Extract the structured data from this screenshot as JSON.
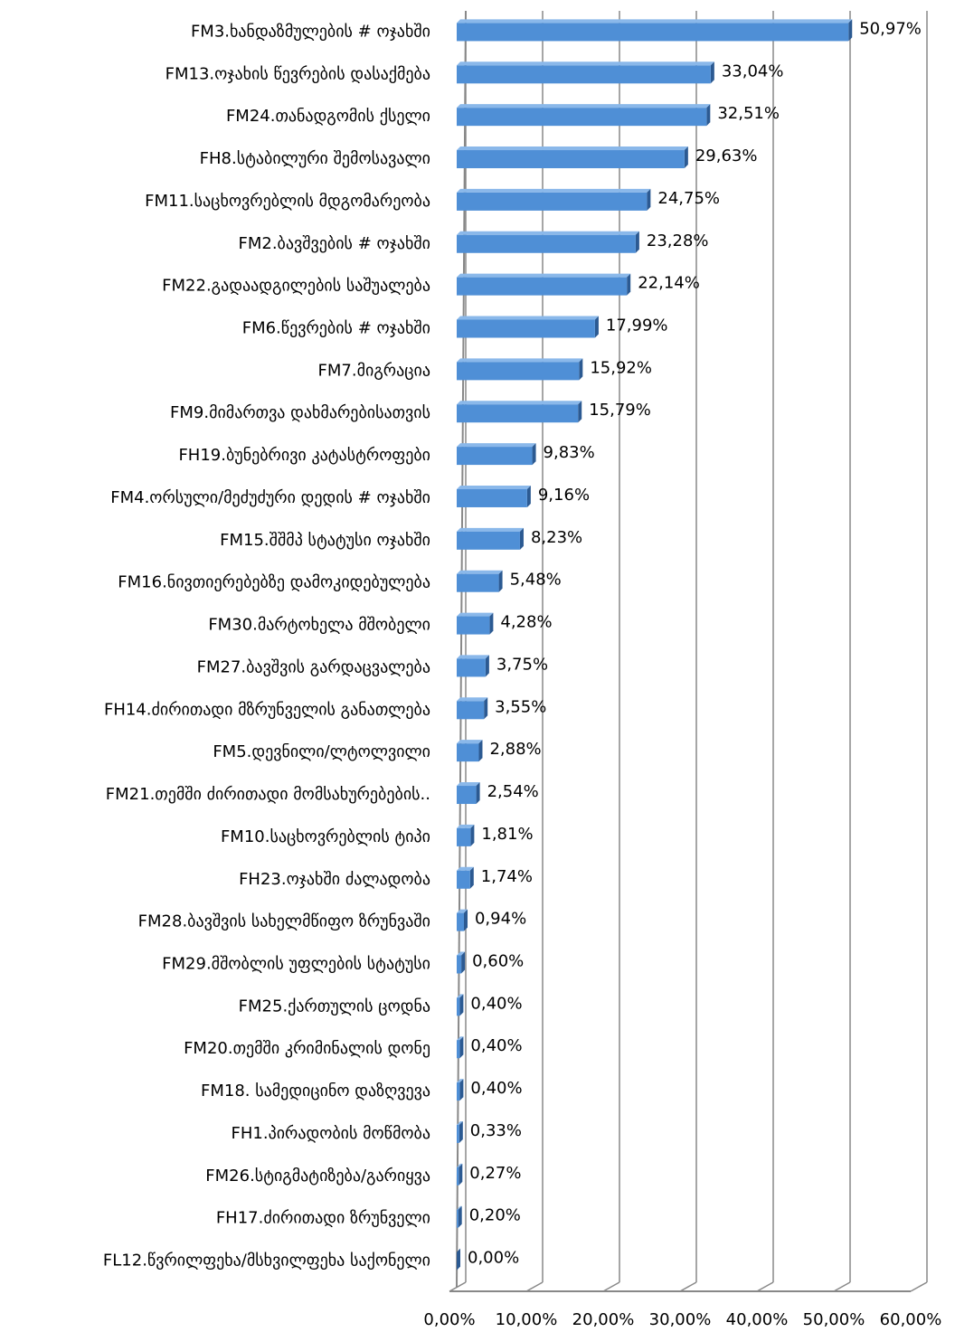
{
  "chart_data": {
    "type": "bar",
    "orientation": "horizontal",
    "categories": [
      "FM3.ხანდაზმულების # ოჯახში",
      "FM13.ოჯახის წევრების დასაქმება",
      "FM24.თანადგომის ქსელი",
      "FH8.სტაბილური შემოსავალი",
      "FM11.საცხოვრებლის მდგომარეობა",
      "FM2.ბავშვების # ოჯახში",
      "FM22.გადაადგილების საშუალება",
      "FM6.წევრების # ოჯახში",
      "FM7.მიგრაცია",
      "FM9.მიმართვა დახმარებისათვის",
      "FH19.ბუნებრივი კატასტროფები",
      "FM4.ორსული/მეძუძური დედის # ოჯახში",
      "FM15.შშმპ სტატუსი ოჯახში",
      "FM16.ნივთიერებებზე დამოკიდებულება",
      "FM30.მარტოხელა მშობელი",
      "FM27.ბავშვის გარდაცვალება",
      "FH14.ძირითადი მზრუნველის განათლება",
      "FM5.დევნილი/ლტოლვილი",
      "FM21.თემში ძირითადი მომსახურებების..",
      "FM10.საცხოვრებლის ტიპი",
      "FH23.ოჯახში ძალადობა",
      "FM28.ბავშვის სახელმწიფო ზრუნვაში",
      "FM29.მშობლის უფლების სტატუსი",
      "FM25.ქართულის ცოდნა",
      "FM20.თემში კრიმინალის  დონე",
      "FM18. სამედიცინო დაზღვევა",
      "FH1.პირადობის მოწმობა",
      "FM26.სტიგმატიზება/გარიყვა",
      "FH17.ძირითადი ზრუნველი",
      "FL12.წვრილფეხა/მსხვილფეხა საქონელი"
    ],
    "values": [
      50.97,
      33.04,
      32.51,
      29.63,
      24.75,
      23.28,
      22.14,
      17.99,
      15.92,
      15.79,
      9.83,
      9.16,
      8.23,
      5.48,
      4.28,
      3.75,
      3.55,
      2.88,
      2.54,
      1.81,
      1.74,
      0.94,
      0.6,
      0.4,
      0.4,
      0.4,
      0.33,
      0.27,
      0.2,
      0.0
    ],
    "value_labels": [
      "50,97%",
      "33,04%",
      "32,51%",
      "29,63%",
      "24,75%",
      "23,28%",
      "22,14%",
      "17,99%",
      "15,92%",
      "15,79%",
      "9,83%",
      "9,16%",
      "8,23%",
      "5,48%",
      "4,28%",
      "3,75%",
      "3,55%",
      "2,88%",
      "2,54%",
      "1,81%",
      "1,74%",
      "0,94%",
      "0,60%",
      "0,40%",
      "0,40%",
      "0,40%",
      "0,33%",
      "0,27%",
      "0,20%",
      "0,00%"
    ],
    "color": "#4f8fd6",
    "xlim": [
      0,
      60
    ],
    "xticks": [
      {
        "value": 0,
        "label": "0,00%"
      },
      {
        "value": 10,
        "label": "10,00%"
      },
      {
        "value": 20,
        "label": "20,00%"
      },
      {
        "value": 30,
        "label": "30,00%"
      },
      {
        "value": 40,
        "label": "40,00%"
      },
      {
        "value": 50,
        "label": "50,00%"
      },
      {
        "value": 60,
        "label": "60,00%"
      }
    ],
    "grid": true
  }
}
